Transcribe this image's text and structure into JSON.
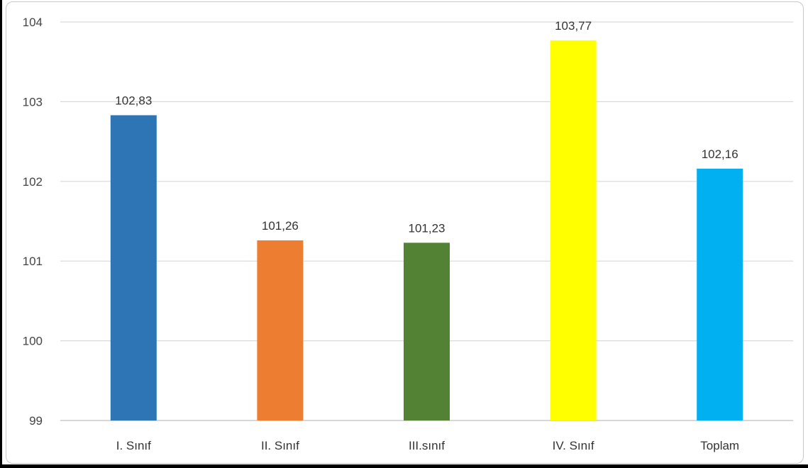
{
  "chart_data": {
    "type": "bar",
    "categories": [
      "I. Sınıf",
      "II. Sınıf",
      "III.sınıf",
      "IV. Sınıf",
      "Toplam"
    ],
    "values": [
      102.83,
      101.26,
      101.23,
      103.77,
      102.16
    ],
    "data_labels": [
      "102,83",
      "101,26",
      "101,23",
      "103,77",
      "102,16"
    ],
    "colors": [
      "#2E75B6",
      "#ED7D31",
      "#548235",
      "#FFFF00",
      "#00B0F0"
    ],
    "ylim": [
      99,
      104
    ],
    "yticks": [
      99,
      100,
      101,
      102,
      103,
      104
    ],
    "ytick_labels": [
      "99",
      "100",
      "101",
      "102",
      "103",
      "104"
    ],
    "grid": true,
    "title": "",
    "xlabel": "",
    "ylabel": ""
  }
}
